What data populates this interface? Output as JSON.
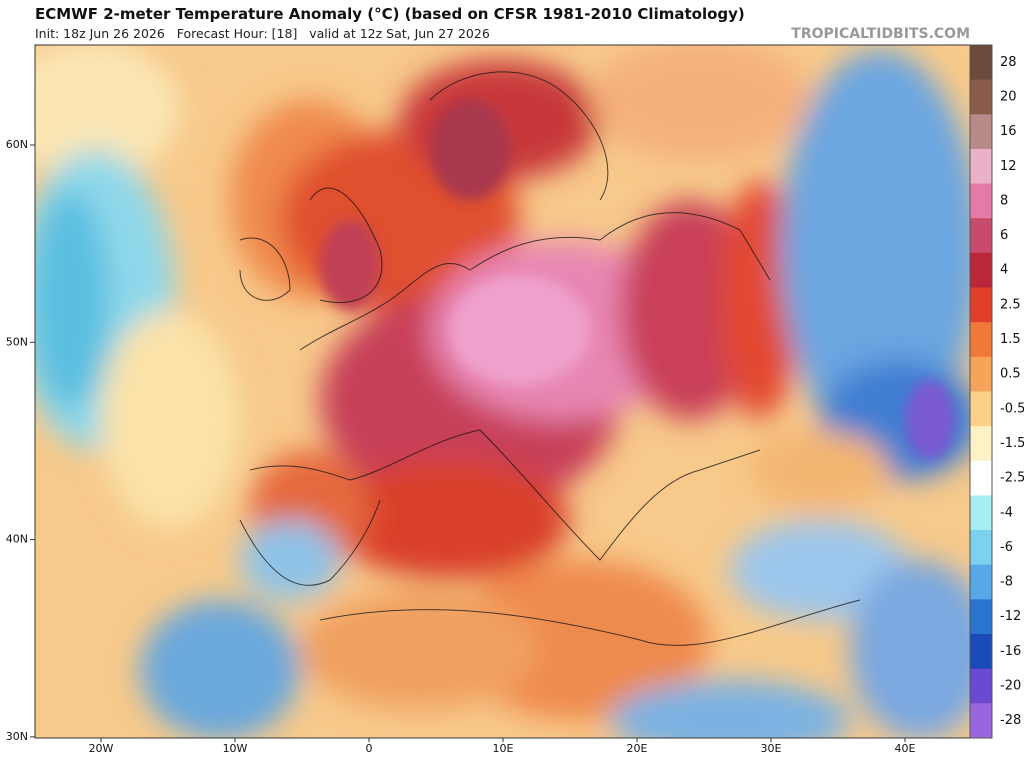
{
  "header": {
    "title": "ECMWF 2-meter Temperature Anomaly (°C) (based on CFSR 1981-2010 Climatology)",
    "subtitle": "Init: 18z Jun 26 2026   Forecast Hour: [18]   valid at 12z Sat, Jun 27 2026",
    "site": "TROPICALTIDBITS.COM"
  },
  "map": {
    "lat_labels": [
      "60N",
      "50N",
      "40N",
      "30N"
    ],
    "lon_labels": [
      "20W",
      "10W",
      "0",
      "10E",
      "20E",
      "30E",
      "40E"
    ]
  },
  "colorbar": {
    "labels": [
      28,
      20,
      16,
      12,
      8,
      6,
      4,
      2.5,
      1.5,
      0.5,
      -0.5,
      -1.5,
      -2.5,
      -4,
      -6,
      -8,
      -12,
      -16,
      -20,
      -28
    ]
  }
}
